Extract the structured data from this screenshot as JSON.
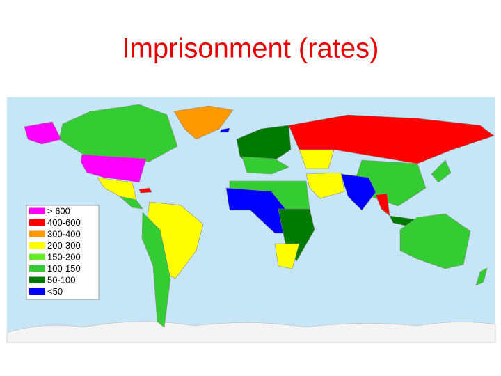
{
  "title": "Imprisonment (rates)",
  "legend": {
    "items": [
      {
        "label": "> 600",
        "color": "#ff00ff"
      },
      {
        "label": "400-600",
        "color": "#ff0000"
      },
      {
        "label": "300-400",
        "color": "#ff9900"
      },
      {
        "label": "200-300",
        "color": "#ffff00"
      },
      {
        "label": "150-200",
        "color": "#66ee22"
      },
      {
        "label": "100-150",
        "color": "#33cc33"
      },
      {
        "label": "50-100",
        "color": "#007a00"
      },
      {
        "label": "<50",
        "color": "#0000ff"
      }
    ]
  }
}
